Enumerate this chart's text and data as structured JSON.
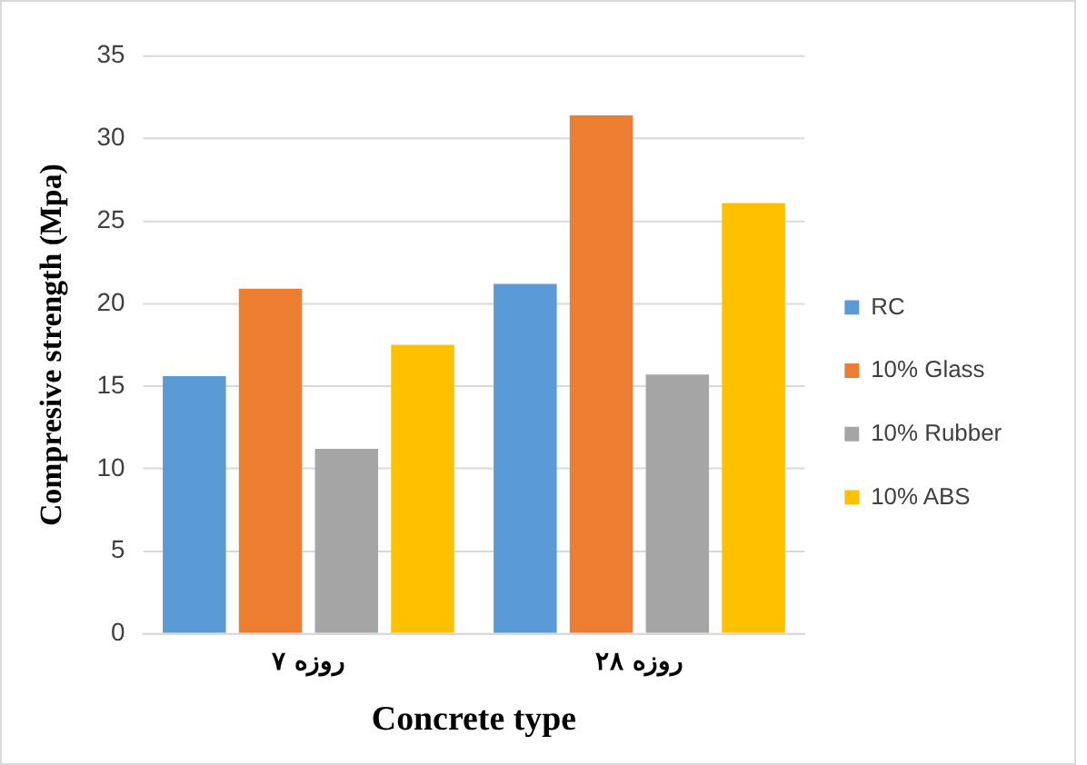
{
  "chart_data": {
    "type": "bar",
    "xlabel": "Concrete type",
    "ylabel": "Compresive strength (Mpa)",
    "categories": [
      "۷ روزه",
      "۲۸ روزه"
    ],
    "series": [
      {
        "name": "RC",
        "color": "#5b9bd5",
        "values": [
          15.6,
          21.2
        ]
      },
      {
        "name": "10% Glass",
        "color": "#ed7d31",
        "values": [
          20.9,
          31.4
        ]
      },
      {
        "name": "10% Rubber",
        "color": "#a5a5a5",
        "values": [
          11.2,
          15.7
        ]
      },
      {
        "name": "10% ABS",
        "color": "#ffc000",
        "values": [
          17.5,
          26.1
        ]
      }
    ],
    "ylim": [
      0,
      35
    ],
    "yticks": [
      0,
      5,
      10,
      15,
      20,
      25,
      30,
      35
    ],
    "grid": "y",
    "legend": "right"
  }
}
